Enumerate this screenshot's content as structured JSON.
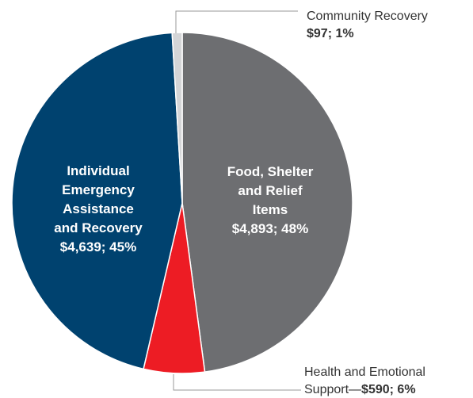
{
  "chart_data": {
    "type": "pie",
    "slices": [
      {
        "label_lines": [
          "Food, Shelter",
          "and Relief",
          "Items"
        ],
        "value_text": "$4,893; 48%",
        "value": 4893,
        "percent": 48,
        "color": "#6d6e71",
        "label_color": "#ffffff"
      },
      {
        "label_lines": [
          "Health and Emotional",
          "Support—"
        ],
        "value_text": "$590; 6%",
        "value": 590,
        "percent": 6,
        "color": "#ed1c24",
        "label_color": "#333333"
      },
      {
        "label_lines": [
          "Individual",
          "Emergency",
          "Assistance",
          "and Recovery"
        ],
        "value_text": "$4,639; 45%",
        "value": 4639,
        "percent": 45,
        "color": "#00426f",
        "label_color": "#ffffff"
      },
      {
        "label_lines": [
          "Community Recovery"
        ],
        "value_text": "$97; 1%",
        "value": 97,
        "percent": 1,
        "color": "#d4d5d7",
        "label_color": "#333333"
      }
    ]
  }
}
